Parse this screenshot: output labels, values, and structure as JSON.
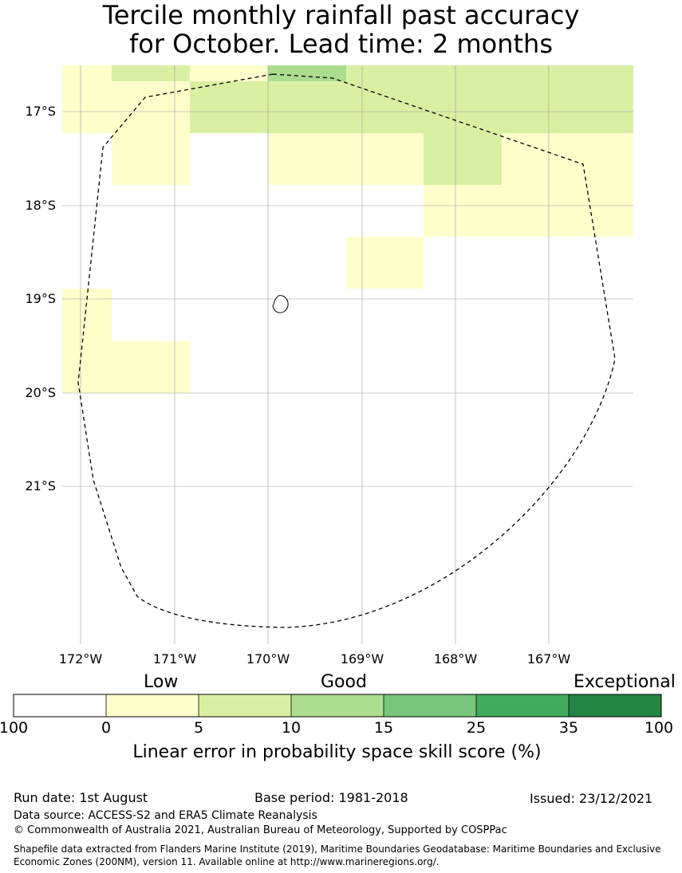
{
  "title": {
    "line1": "Tercile monthly rainfall past accuracy",
    "line2": "for October. Lead time: 2 months"
  },
  "map": {
    "lat_labels": [
      "17°S",
      "18°S",
      "19°S",
      "20°S",
      "21°S"
    ],
    "lon_labels": [
      "172°W",
      "171°W",
      "170°W",
      "169°W",
      "168°W",
      "167°W"
    ],
    "colors": {
      "band_0": "#ffffff",
      "band_0_5": "#ffffcc",
      "band_5_10": "#d9f0a3",
      "band_10_15": "#addd8e",
      "band_15_25": "#78c679",
      "band_25_35": "#41ab5d",
      "band_35_100": "#238443"
    }
  },
  "legend": {
    "categories": [
      "Low",
      "Good",
      "Exceptional"
    ],
    "ticks": [
      "100",
      "0",
      "5",
      "10",
      "15",
      "25",
      "35",
      "100"
    ],
    "label": "Linear error in probability space skill score (%)"
  },
  "footer": {
    "run_date": "Run date: 1st August",
    "base_period": "Base period: 1981-2018",
    "issued": "Issued: 23/12/2021",
    "data_source": "Data source: ACCESS-S2 and ERA5 Climate Reanalysis",
    "copyright": "© Commonwealth of Australia 2021, Australian Bureau of Meteorology, Supported by COSPPac",
    "shapefile_line1": "Shapefile data extracted from Flanders Marine Institute (2019), Maritime Boundaries Geodatabase: Maritime Boundaries and Exclusive",
    "shapefile_line2": "Economic Zones (200NM), version 11. Available online at http://www.marineregions.org/."
  }
}
